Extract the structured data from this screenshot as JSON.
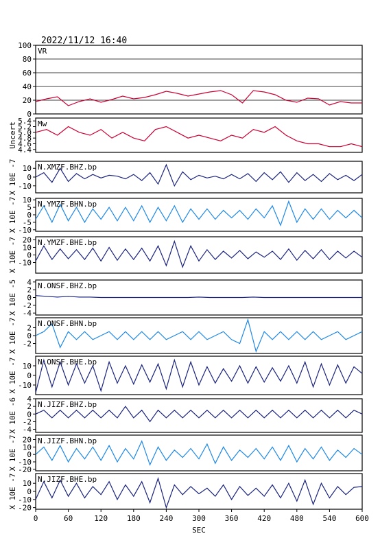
{
  "header": {
    "datetime": "2022/11/12 16:40"
  },
  "chart_data": {
    "type": "line",
    "xlabel": "SEC",
    "xlim": [
      0,
      600
    ],
    "xticks": [
      "0",
      "60",
      "120",
      "180",
      "240",
      "300",
      "360",
      "420",
      "480",
      "540",
      "600"
    ],
    "panels": [
      {
        "label": "VR",
        "ylim": [
          0,
          100
        ],
        "yticks": [
          "0",
          "20",
          "40",
          "60",
          "80",
          "100"
        ],
        "grid": true,
        "color": "#cc0033",
        "series": {
          "x": [
            0,
            20,
            40,
            60,
            80,
            100,
            120,
            140,
            160,
            180,
            200,
            220,
            240,
            260,
            280,
            300,
            320,
            340,
            360,
            380,
            400,
            420,
            440,
            460,
            480,
            500,
            520,
            540,
            560,
            580,
            600
          ],
          "values": [
            18,
            22,
            25,
            12,
            18,
            22,
            17,
            21,
            26,
            22,
            24,
            28,
            33,
            30,
            26,
            29,
            32,
            34,
            28,
            16,
            34,
            32,
            28,
            20,
            17,
            23,
            22,
            13,
            18,
            16,
            16
          ]
        }
      },
      {
        "label": "Mw",
        "ylim": [
          4.3,
          5.5
        ],
        "yticks": [
          "4.4",
          "4.6",
          "4.8",
          "5.0",
          "5.2",
          "5.4"
        ],
        "ylabel": "Uncert",
        "grid": false,
        "color": "#cc0033",
        "series": {
          "x": [
            0,
            20,
            40,
            60,
            80,
            100,
            120,
            140,
            160,
            180,
            200,
            220,
            240,
            260,
            280,
            300,
            320,
            340,
            360,
            380,
            400,
            420,
            440,
            460,
            480,
            500,
            520,
            540,
            560,
            580,
            600
          ],
          "values": [
            5.0,
            5.1,
            4.9,
            5.2,
            5.0,
            4.9,
            5.1,
            4.8,
            5.0,
            4.8,
            4.7,
            5.1,
            5.2,
            5.0,
            4.8,
            4.9,
            4.8,
            4.7,
            4.9,
            4.8,
            5.1,
            5.0,
            5.2,
            4.9,
            4.7,
            4.6,
            4.6,
            4.5,
            4.5,
            4.6,
            4.5
          ]
        }
      },
      {
        "label": "N.XMZF.BHZ.bp",
        "ylim": [
          -18,
          18
        ],
        "yticks": [
          "-10",
          "0",
          "10"
        ],
        "ylabel": "X 10E -7",
        "grid": false,
        "color": "#1a237e",
        "series": {
          "x": [
            0,
            15,
            30,
            45,
            60,
            75,
            90,
            105,
            120,
            135,
            150,
            165,
            180,
            195,
            210,
            225,
            240,
            255,
            270,
            285,
            300,
            315,
            330,
            345,
            360,
            375,
            390,
            405,
            420,
            435,
            450,
            465,
            480,
            495,
            510,
            525,
            540,
            555,
            570,
            585,
            600
          ],
          "values": [
            0,
            5,
            -6,
            10,
            -5,
            4,
            -2,
            3,
            -1,
            2,
            1,
            -2,
            3,
            -4,
            5,
            -8,
            14,
            -10,
            6,
            -3,
            2,
            -1,
            1,
            -2,
            3,
            -2,
            4,
            -5,
            5,
            -3,
            6,
            -6,
            5,
            -4,
            3,
            -5,
            4,
            -3,
            2,
            -4,
            3
          ]
        }
      },
      {
        "label": "N.YMZF.BHN.bp",
        "ylim": [
          -11,
          11
        ],
        "yticks": [
          "-10",
          "-5",
          "0",
          "5",
          "10"
        ],
        "ylabel": "X 10E -7",
        "grid": false,
        "color": "#1e88e5",
        "series": {
          "x": [
            0,
            15,
            30,
            45,
            60,
            75,
            90,
            105,
            120,
            135,
            150,
            165,
            180,
            195,
            210,
            225,
            240,
            255,
            270,
            285,
            300,
            315,
            330,
            345,
            360,
            375,
            390,
            405,
            420,
            435,
            450,
            465,
            480,
            495,
            510,
            525,
            540,
            555,
            570,
            585,
            600
          ],
          "values": [
            -3,
            6,
            -5,
            7,
            -4,
            5,
            -5,
            4,
            -3,
            5,
            -4,
            5,
            -4,
            6,
            -5,
            5,
            -4,
            6,
            -5,
            4,
            -3,
            4,
            -3,
            3,
            -2,
            3,
            -3,
            4,
            -2,
            6,
            -7,
            9,
            -5,
            4,
            -3,
            4,
            -3,
            3,
            -2,
            3,
            -2
          ]
        }
      },
      {
        "label": "N.YMZF.BHE.bp",
        "ylim": [
          -24,
          24
        ],
        "yticks": [
          "-10",
          "0",
          "10",
          "20"
        ],
        "ylabel": "X 10E -7",
        "grid": false,
        "color": "#1a237e",
        "series": {
          "x": [
            0,
            15,
            30,
            45,
            60,
            75,
            90,
            105,
            120,
            135,
            150,
            165,
            180,
            195,
            210,
            225,
            240,
            255,
            270,
            285,
            300,
            315,
            330,
            345,
            360,
            375,
            390,
            405,
            420,
            435,
            450,
            465,
            480,
            495,
            510,
            525,
            540,
            555,
            570,
            585,
            600
          ],
          "values": [
            -8,
            12,
            -6,
            8,
            -5,
            7,
            -6,
            9,
            -8,
            10,
            -7,
            8,
            -6,
            9,
            -8,
            12,
            -14,
            18,
            -16,
            12,
            -8,
            7,
            -6,
            5,
            -4,
            6,
            -5,
            4,
            -3,
            5,
            -6,
            8,
            -7,
            6,
            -5,
            7,
            -6,
            5,
            -4,
            5,
            -3
          ]
        }
      },
      {
        "label": "N.ONSF.BHZ.bp",
        "ylim": [
          -4.5,
          4.5
        ],
        "yticks": [
          "-4",
          "-2",
          "0",
          "2",
          "4"
        ],
        "ylabel": "X 10E -5",
        "grid": false,
        "color": "#1a237e",
        "series": {
          "x": [
            0,
            20,
            40,
            60,
            80,
            100,
            120,
            140,
            160,
            180,
            200,
            220,
            240,
            260,
            280,
            300,
            320,
            340,
            360,
            380,
            400,
            420,
            440,
            460,
            480,
            500,
            520,
            540,
            560,
            580,
            600
          ],
          "values": [
            0.5,
            0.3,
            0.1,
            0.3,
            0.1,
            0.1,
            0,
            0,
            0,
            0,
            0,
            0,
            0,
            0,
            0,
            0.1,
            0,
            0,
            0,
            0,
            0.1,
            0,
            0,
            0,
            0,
            0,
            0,
            0,
            0,
            0,
            0
          ]
        }
      },
      {
        "label": "N.ONSF.BHN.bp",
        "ylim": [
          -4.5,
          4.5
        ],
        "yticks": [
          "-2",
          "0",
          "2"
        ],
        "ylabel": "X 10E -7",
        "grid": false,
        "color": "#1e88e5",
        "series": {
          "x": [
            0,
            15,
            30,
            45,
            60,
            75,
            90,
            105,
            120,
            135,
            150,
            165,
            180,
            195,
            210,
            225,
            240,
            255,
            270,
            285,
            300,
            315,
            330,
            345,
            360,
            375,
            390,
            405,
            420,
            435,
            450,
            465,
            480,
            495,
            510,
            525,
            540,
            555,
            570,
            585,
            600
          ],
          "values": [
            0,
            1,
            3,
            -3,
            1,
            -1,
            1,
            -1,
            0,
            1,
            -1,
            1,
            -1,
            1,
            -1,
            1,
            -1,
            0,
            1,
            -1,
            1,
            -1,
            0,
            1,
            -1,
            -2,
            4,
            -4,
            1,
            -1,
            1,
            -1,
            1,
            -1,
            1,
            -1,
            0,
            1,
            -1,
            0,
            1
          ]
        }
      },
      {
        "label": "N.ONSF.BHE.bp",
        "ylim": [
          -20,
          20
        ],
        "yticks": [
          "-10",
          "0",
          "10"
        ],
        "ylabel": "X 10E -7",
        "grid": false,
        "color": "#1a237e",
        "series": {
          "x": [
            0,
            15,
            30,
            45,
            60,
            75,
            90,
            105,
            120,
            135,
            150,
            165,
            180,
            195,
            210,
            225,
            240,
            255,
            270,
            285,
            300,
            315,
            330,
            345,
            360,
            375,
            390,
            405,
            420,
            435,
            450,
            465,
            480,
            495,
            510,
            525,
            540,
            555,
            570,
            585,
            600
          ],
          "values": [
            -18,
            16,
            -12,
            14,
            -10,
            12,
            -8,
            10,
            -16,
            14,
            -8,
            10,
            -9,
            11,
            -7,
            12,
            -14,
            16,
            -12,
            14,
            -10,
            9,
            -8,
            7,
            -6,
            10,
            -8,
            9,
            -7,
            8,
            -6,
            10,
            -8,
            14,
            -12,
            12,
            -10,
            11,
            -8,
            9,
            2
          ]
        }
      },
      {
        "label": "N.JIZF.BHZ.bp",
        "ylim": [
          -4.8,
          4
        ],
        "yticks": [
          "-4",
          "-2",
          "0",
          "2",
          "4"
        ],
        "ylabel": "X 10E -6",
        "grid": false,
        "color": "#1a237e",
        "series": {
          "x": [
            0,
            15,
            30,
            45,
            60,
            75,
            90,
            105,
            120,
            135,
            150,
            165,
            180,
            195,
            210,
            225,
            240,
            255,
            270,
            285,
            300,
            315,
            330,
            345,
            360,
            375,
            390,
            405,
            420,
            435,
            450,
            465,
            480,
            495,
            510,
            525,
            540,
            555,
            570,
            585,
            600
          ],
          "values": [
            0,
            1,
            -1,
            1,
            -1,
            1,
            -1,
            1,
            -1,
            1,
            -1,
            2,
            -1,
            1,
            -2,
            1,
            -1,
            1,
            -1,
            1,
            -1,
            1,
            -1,
            1,
            -1,
            1,
            -1,
            1,
            -1,
            1,
            -1,
            1,
            -1,
            1,
            -1,
            1,
            -1,
            1,
            -1,
            1,
            0
          ]
        }
      },
      {
        "label": "N.JIZF.BHN.bp",
        "ylim": [
          -22,
          26
        ],
        "yticks": [
          "-20",
          "-10",
          "0",
          "10",
          "20"
        ],
        "ylabel": "X 10E -7",
        "grid": false,
        "color": "#1e88e5",
        "series": {
          "x": [
            0,
            15,
            30,
            45,
            60,
            75,
            90,
            105,
            120,
            135,
            150,
            165,
            180,
            195,
            210,
            225,
            240,
            255,
            270,
            285,
            300,
            315,
            330,
            345,
            360,
            375,
            390,
            405,
            420,
            435,
            450,
            465,
            480,
            495,
            510,
            525,
            540,
            555,
            570,
            585,
            600
          ],
          "values": [
            0,
            10,
            -8,
            12,
            -10,
            8,
            -6,
            10,
            -8,
            12,
            -10,
            8,
            -6,
            18,
            -14,
            10,
            -8,
            6,
            -4,
            8,
            -6,
            14,
            -12,
            10,
            -8,
            6,
            -4,
            8,
            -6,
            10,
            -8,
            12,
            -10,
            8,
            -6,
            10,
            -8,
            6,
            -4,
            8,
            0
          ]
        }
      },
      {
        "label": "N.JIZF.BHE.bp",
        "ylim": [
          -22,
          22
        ],
        "yticks": [
          "-20",
          "-10",
          "0",
          "10"
        ],
        "ylabel": "X 10E -7",
        "grid": false,
        "color": "#1a237e",
        "series": {
          "x": [
            0,
            15,
            30,
            45,
            60,
            75,
            90,
            105,
            120,
            135,
            150,
            165,
            180,
            195,
            210,
            225,
            240,
            255,
            270,
            285,
            300,
            315,
            330,
            345,
            360,
            375,
            390,
            405,
            420,
            435,
            450,
            465,
            480,
            495,
            510,
            525,
            540,
            555,
            570,
            585,
            600
          ],
          "values": [
            -10,
            12,
            -8,
            14,
            -6,
            10,
            -8,
            6,
            -4,
            12,
            -10,
            8,
            -6,
            12,
            -14,
            16,
            -20,
            8,
            -4,
            6,
            -3,
            4,
            -6,
            8,
            -10,
            6,
            -5,
            4,
            -6,
            8,
            -8,
            10,
            -12,
            14,
            -16,
            10,
            -8,
            6,
            -4,
            5,
            6
          ]
        }
      }
    ]
  }
}
